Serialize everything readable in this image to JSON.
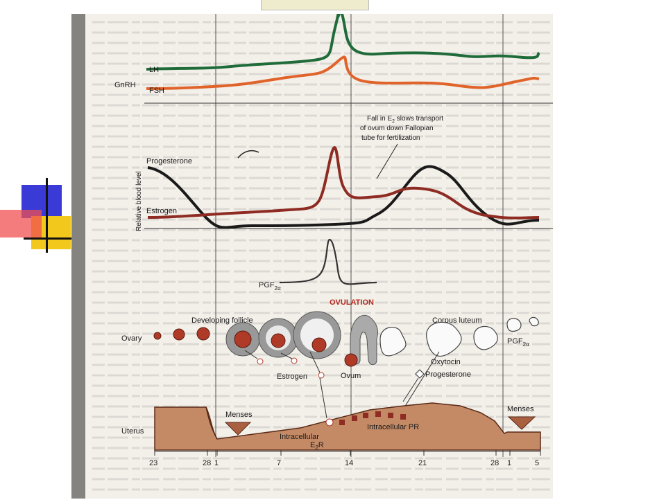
{
  "colors": {
    "lh": "#1f6b3a",
    "fsh": "#e0642a",
    "progesterone": "#1a1a1a",
    "estrogen": "#8e2b22",
    "pgf": "#333333",
    "ovulation": "#b5281e",
    "uterus_fill": "#c48a66",
    "uterus_stroke": "#5a2a18",
    "follicle_red": "#b03a28",
    "page_bg": "#f3efe9",
    "deco_blue": "#3a3ad6",
    "deco_yellow": "#f2c81c",
    "deco_red": "#f05050"
  },
  "hormones": {
    "gnrh": "GnRH",
    "lh": "LH",
    "fsh": "FSH",
    "progesterone": "Progesterone",
    "estrogen": "Estrogen",
    "pgf_base": "PGF",
    "pgf_sub": "2α"
  },
  "y_axis_label": "Relative blood level",
  "annotation": {
    "line1_a": "Fall in E",
    "line1_sub": "2",
    "line1_b": " slows transport",
    "line2": "of ovum down Fallopian",
    "line3": "tube for fertilization"
  },
  "ovulation_label": "OVULATION",
  "structures": {
    "developing_follicle": "Developing follicle",
    "corpus_luteum": "Corpus luteum",
    "ovary": "Ovary",
    "estrogen": "Estrogen",
    "ovum": "Ovum",
    "oxytocin": "Oxytocin",
    "progesterone": "Progesterone",
    "pgf_base": "PGF",
    "pgf_sub": "2α"
  },
  "uterus": {
    "label": "Uterus",
    "menses_left": "Menses",
    "menses_right": "Menses",
    "intracellular_e2r_line1": "Intracellular",
    "intracellular_e2r_base": "E",
    "intracellular_e2r_sub": "2",
    "intracellular_e2r_end": "R",
    "intracellular_pr": "Intracellular PR"
  },
  "day_ticks": [
    "23",
    "28",
    "1",
    "7",
    "14",
    "21",
    "28",
    "1",
    "5"
  ]
}
